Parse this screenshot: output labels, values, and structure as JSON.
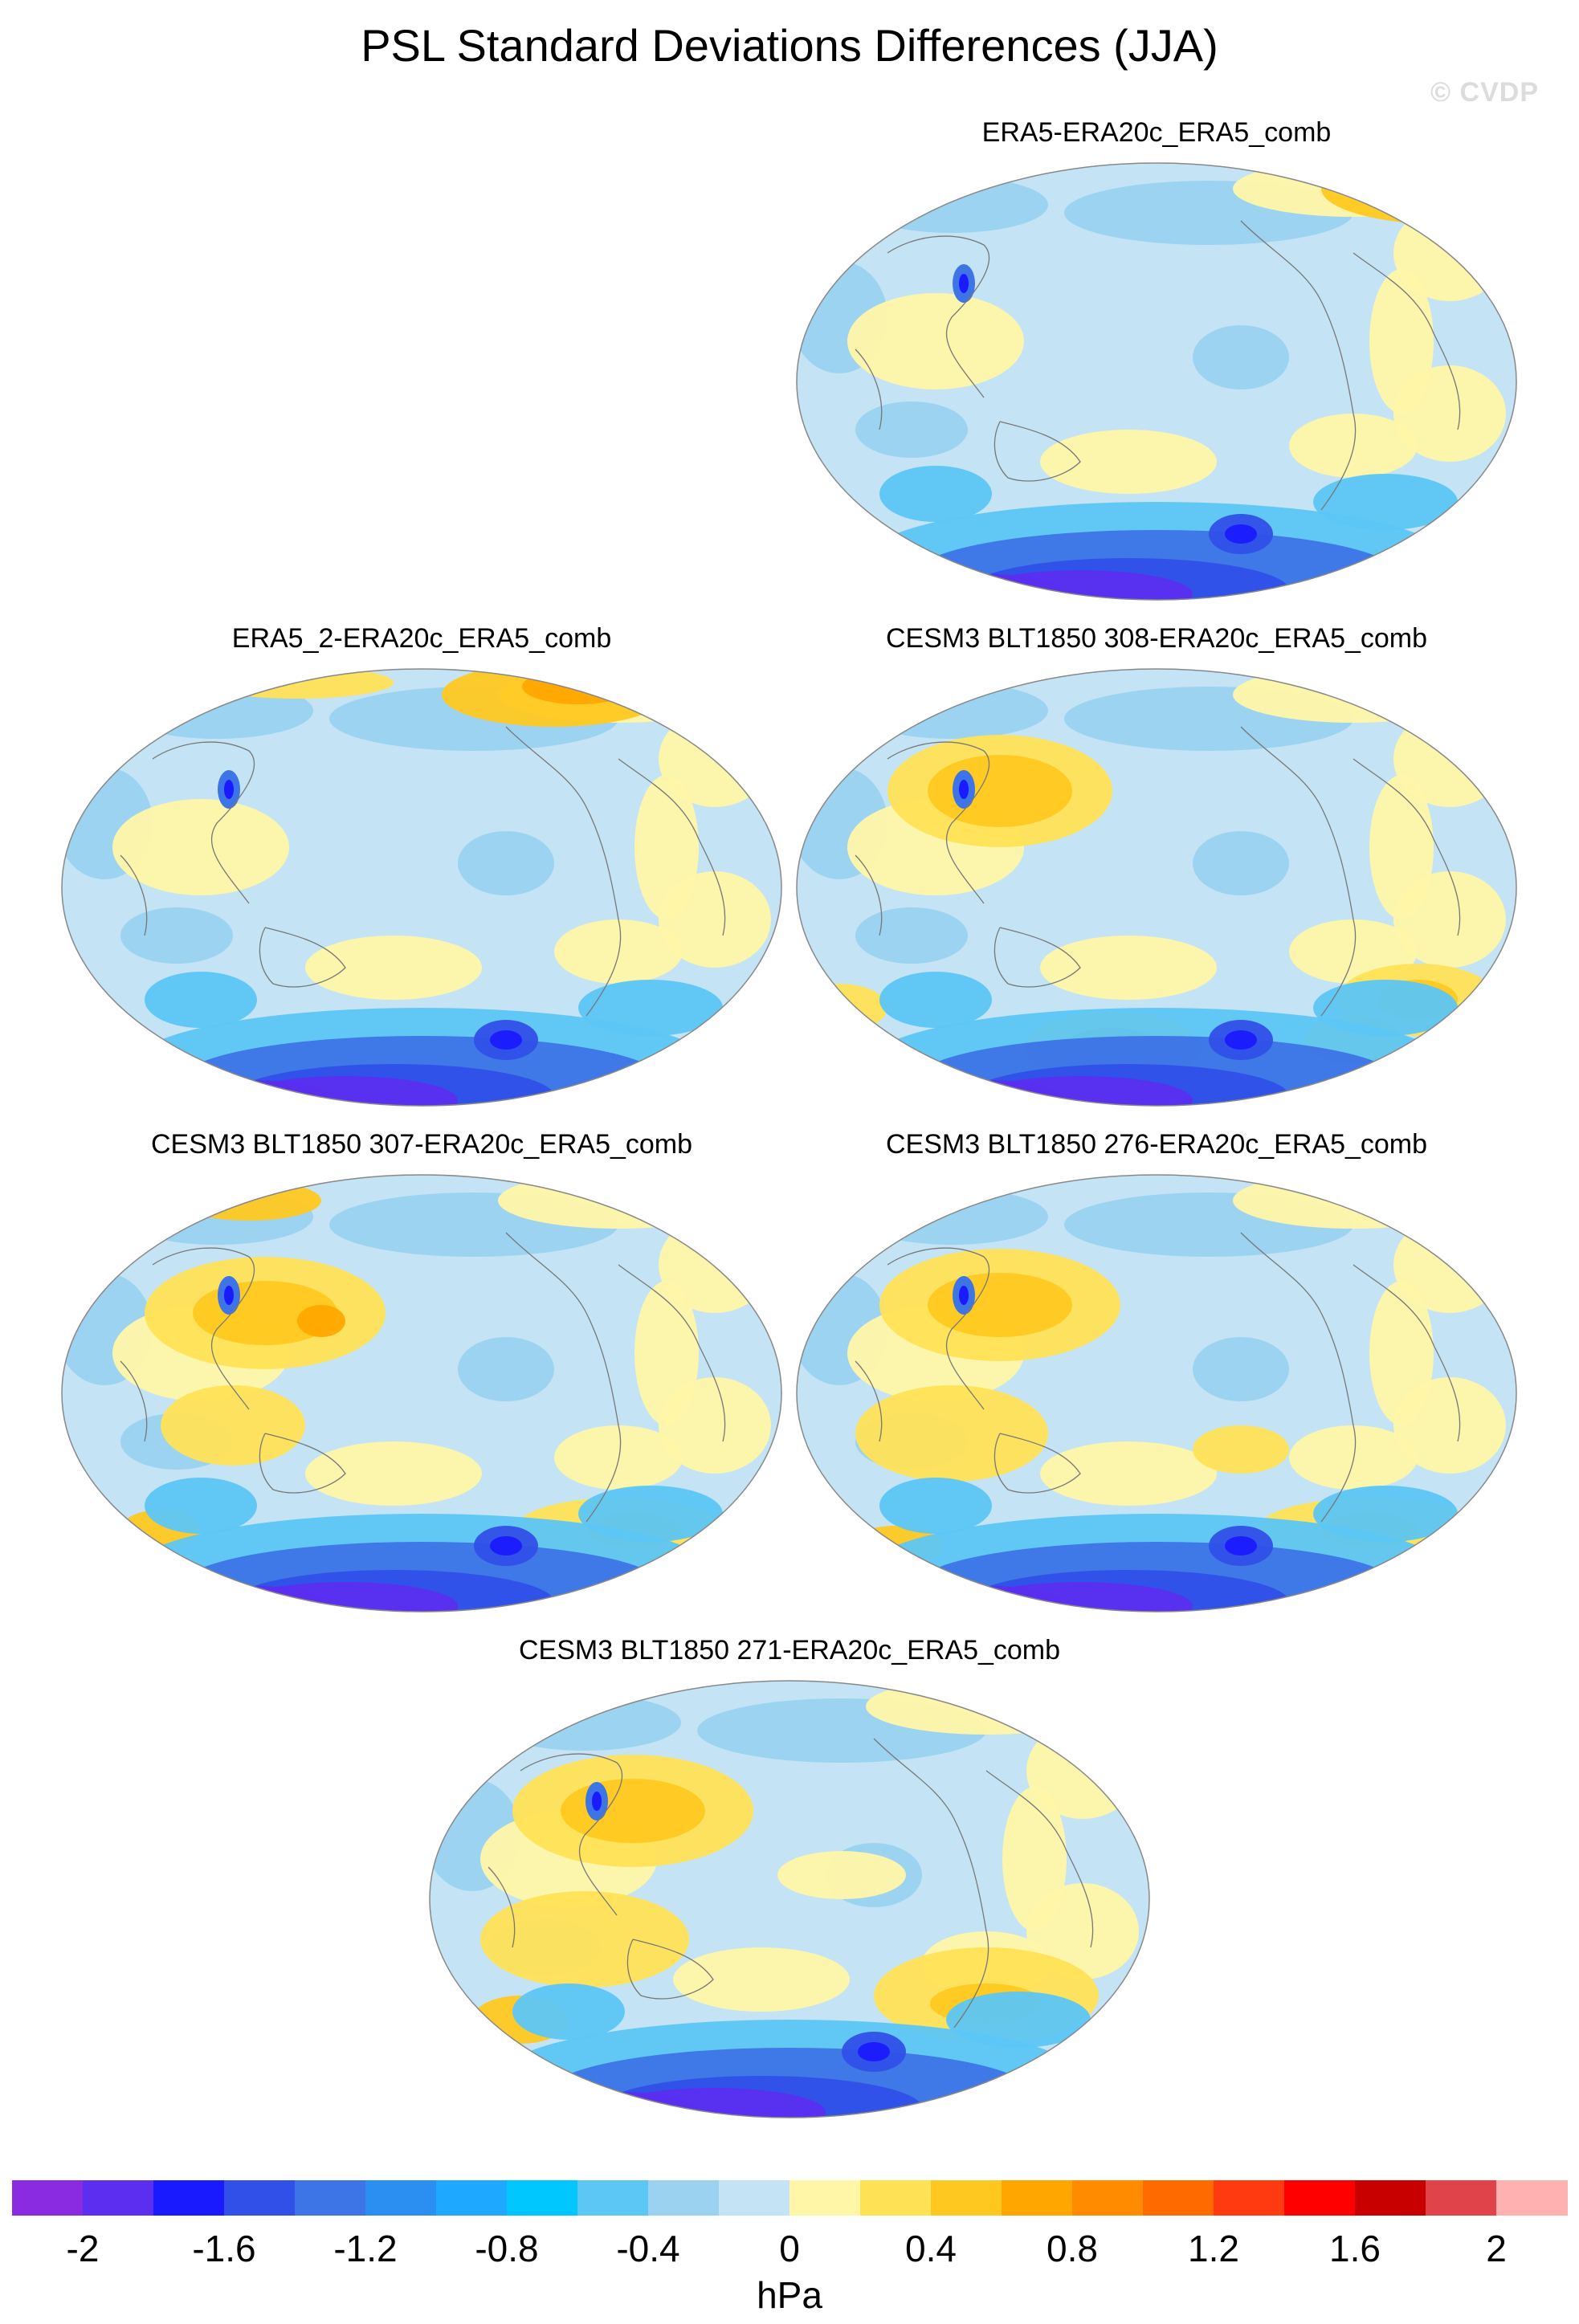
{
  "title": "PSL Standard Deviations Differences (JJA)",
  "watermark": "© CVDP",
  "panels": [
    {
      "label": "ERA5-ERA20c_ERA5_comb"
    },
    {
      "label": "ERA5_2-ERA20c_ERA5_comb"
    },
    {
      "label": "CESM3 BLT1850 308-ERA20c_ERA5_comb"
    },
    {
      "label": "CESM3 BLT1850 307-ERA20c_ERA5_comb"
    },
    {
      "label": "CESM3 BLT1850 276-ERA20c_ERA5_comb"
    },
    {
      "label": "CESM3 BLT1850 271-ERA20c_ERA5_comb"
    }
  ],
  "colorbar": {
    "units": "hPa",
    "colors": [
      "#8a2be2",
      "#5b2ef0",
      "#1a1aff",
      "#3050e8",
      "#3d74e6",
      "#2a8ff0",
      "#1ea8ff",
      "#00c8ff",
      "#5cc6f5",
      "#9ad2ef",
      "#c4e4f5",
      "#fff6a8",
      "#ffe156",
      "#ffc820",
      "#ffa700",
      "#ff8c00",
      "#ff6a00",
      "#ff3a10",
      "#ff0000",
      "#c80000",
      "#e0444a",
      "#ffb0b0"
    ],
    "tick_labels": [
      "-2",
      "-1.6",
      "-1.2",
      "-0.8",
      "-0.4",
      "0",
      "0.4",
      "0.8",
      "1.2",
      "1.6",
      "2"
    ],
    "tick_boundaries": [
      1,
      3,
      5,
      7,
      9,
      11,
      13,
      15,
      17,
      19,
      21
    ]
  }
}
